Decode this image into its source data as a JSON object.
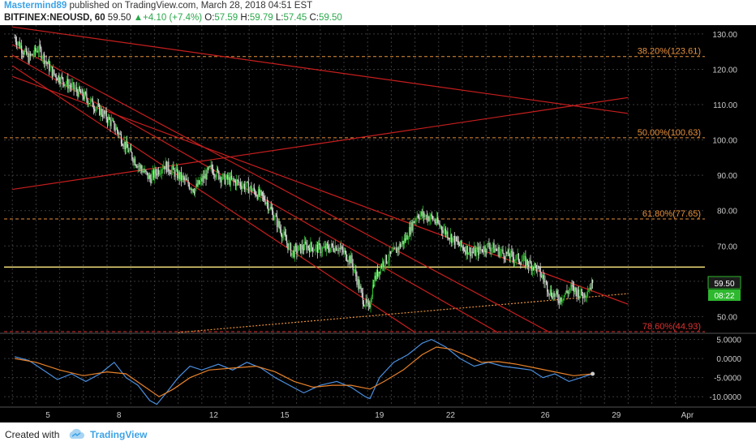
{
  "header": {
    "author": "Mastermind89",
    "published": " published on TradingView.com, March 28, 2018 04:51 EST",
    "symbol": "BITFINEX:NEOUSD, 60",
    "last": " 59.50 ",
    "change": "+4.10 (+7.4%)",
    "o_label": " O:",
    "o_value": "57.59",
    "h_label": " H:",
    "h_value": "59.79",
    "l_label": " L:",
    "l_value": "57.45",
    "c_label": " C:",
    "c_value": "59.50"
  },
  "footer": {
    "created_with": "Created with",
    "brand": "TradingView"
  },
  "colors": {
    "background": "#000000",
    "grid": "#3a3a3a",
    "up": "#2eb82e",
    "down": "#e0e0e0",
    "trendline": "#c81e1e",
    "fib": "#e8913a",
    "fib_786": "#e03030",
    "horizontal": "#f5e27a",
    "support_dotted": "#e8913a",
    "osc_fast": "#4a8fe0",
    "osc_slow": "#e8822a",
    "axis_text": "#c8c8c8"
  },
  "chart_data": [
    {
      "type": "candlestick",
      "symbol": "BITFINEX:NEOUSD",
      "interval": "60",
      "x_tick_labels": [
        "5",
        "8",
        "12",
        "15",
        "19",
        "22",
        "26",
        "29",
        "Apr"
      ],
      "y_tick_labels": [
        "130.00",
        "120.00",
        "110.00",
        "100.00",
        "90.00",
        "80.00",
        "70.00",
        "60.00",
        "50.00"
      ],
      "ylim": [
        45.5,
        132.5
      ],
      "grid": true,
      "price_path": [
        [
          3.6,
          129
        ],
        [
          4.2,
          123
        ],
        [
          4.6,
          126
        ],
        [
          5.2,
          119
        ],
        [
          5.8,
          116
        ],
        [
          6.6,
          112
        ],
        [
          7.4,
          107
        ],
        [
          7.9,
          103
        ],
        [
          8.3,
          98
        ],
        [
          8.8,
          93
        ],
        [
          9.3,
          89
        ],
        [
          9.9,
          93
        ],
        [
          10.5,
          90
        ],
        [
          11.2,
          86
        ],
        [
          11.9,
          92
        ],
        [
          12.4,
          89
        ],
        [
          13.0,
          88
        ],
        [
          13.6,
          86
        ],
        [
          14.2,
          83
        ],
        [
          14.8,
          75
        ],
        [
          15.3,
          68
        ],
        [
          15.9,
          70
        ],
        [
          16.6,
          69
        ],
        [
          17.2,
          70
        ],
        [
          17.8,
          66
        ],
        [
          18.3,
          55
        ],
        [
          18.55,
          52
        ],
        [
          18.75,
          60
        ],
        [
          19.1,
          65
        ],
        [
          19.6,
          68
        ],
        [
          20.1,
          72
        ],
        [
          20.6,
          79
        ],
        [
          21.2,
          78
        ],
        [
          21.8,
          74
        ],
        [
          22.4,
          70
        ],
        [
          23.0,
          68
        ],
        [
          23.6,
          70
        ],
        [
          24.2,
          68
        ],
        [
          25.0,
          66
        ],
        [
          25.6,
          64
        ],
        [
          25.9,
          61
        ],
        [
          26.2,
          57
        ],
        [
          26.6,
          55
        ],
        [
          27.1,
          58
        ],
        [
          27.6,
          56
        ],
        [
          28.0,
          59.5
        ]
      ],
      "last_price": 59.5,
      "price_label": "59.50",
      "countdown_label": "08:22",
      "fib_levels": [
        {
          "label": "38.20%(123.61)",
          "price": 123.61
        },
        {
          "label": "50.00%(100.63)",
          "price": 100.63
        },
        {
          "label": "61.80%(77.65)",
          "price": 77.65
        },
        {
          "label": "78.60%(44.93)",
          "price": 44.93
        }
      ],
      "horizontal_line": 64.0,
      "trendlines": [
        {
          "from": [
            3.5,
            132
          ],
          "to": [
            29.5,
            107.5
          ]
        },
        {
          "from": [
            3.5,
            127
          ],
          "to": [
            26.2,
            45.5
          ]
        },
        {
          "from": [
            3.5,
            124
          ],
          "to": [
            24.0,
            45.5
          ]
        },
        {
          "from": [
            3.5,
            121
          ],
          "to": [
            20.5,
            45.5
          ]
        },
        {
          "from": [
            3.5,
            118
          ],
          "to": [
            29.5,
            53.5
          ]
        },
        {
          "from": [
            3.5,
            86
          ],
          "to": [
            29.5,
            112
          ]
        }
      ],
      "dotted_support": {
        "from": [
          10.5,
          45.5
        ],
        "to": [
          29.5,
          56.5
        ]
      }
    },
    {
      "type": "line",
      "name": "oscillator",
      "y_tick_labels": [
        "5.0000",
        "0.0000",
        "-5.0000",
        "-10.0000"
      ],
      "ylim": [
        -12.5,
        6.4
      ],
      "grid": true,
      "series": [
        {
          "color_key": "osc_fast",
          "points": [
            [
              3.6,
              0.5
            ],
            [
              4.2,
              -0.5
            ],
            [
              4.8,
              -3
            ],
            [
              5.4,
              -5.5
            ],
            [
              6.0,
              -4
            ],
            [
              6.6,
              -6
            ],
            [
              7.2,
              -4
            ],
            [
              7.8,
              -1
            ],
            [
              8.3,
              -5
            ],
            [
              8.8,
              -7
            ],
            [
              9.3,
              -11
            ],
            [
              9.6,
              -12
            ],
            [
              10.0,
              -9
            ],
            [
              10.5,
              -5
            ],
            [
              11.0,
              -2
            ],
            [
              11.5,
              -3
            ],
            [
              12.2,
              -1.5
            ],
            [
              12.8,
              -3
            ],
            [
              13.4,
              -1
            ],
            [
              14.0,
              -2.5
            ],
            [
              14.6,
              -5
            ],
            [
              15.2,
              -7
            ],
            [
              15.8,
              -9
            ],
            [
              16.5,
              -7
            ],
            [
              17.2,
              -6
            ],
            [
              17.8,
              -7.5
            ],
            [
              18.4,
              -10
            ],
            [
              18.6,
              -10.5
            ],
            [
              19.0,
              -5
            ],
            [
              19.6,
              -1
            ],
            [
              20.2,
              1
            ],
            [
              20.8,
              4
            ],
            [
              21.2,
              5
            ],
            [
              21.8,
              3
            ],
            [
              22.4,
              0
            ],
            [
              23.0,
              -2
            ],
            [
              23.6,
              -1
            ],
            [
              24.2,
              -2
            ],
            [
              24.8,
              -2.5
            ],
            [
              25.4,
              -3
            ],
            [
              25.9,
              -5
            ],
            [
              26.4,
              -4
            ],
            [
              27.0,
              -6
            ],
            [
              27.5,
              -5
            ],
            [
              28.0,
              -4
            ]
          ]
        },
        {
          "color_key": "osc_slow",
          "points": [
            [
              3.6,
              0
            ],
            [
              4.5,
              -1
            ],
            [
              5.5,
              -3
            ],
            [
              6.5,
              -4.5
            ],
            [
              7.5,
              -3.5
            ],
            [
              8.3,
              -4
            ],
            [
              9.0,
              -7
            ],
            [
              9.7,
              -10
            ],
            [
              10.3,
              -8
            ],
            [
              11.0,
              -5
            ],
            [
              11.8,
              -3
            ],
            [
              12.8,
              -2.5
            ],
            [
              13.8,
              -2
            ],
            [
              14.6,
              -3.5
            ],
            [
              15.4,
              -6
            ],
            [
              16.2,
              -7.5
            ],
            [
              17.0,
              -7
            ],
            [
              17.8,
              -7
            ],
            [
              18.6,
              -8
            ],
            [
              19.2,
              -6
            ],
            [
              20.0,
              -3
            ],
            [
              20.8,
              1
            ],
            [
              21.4,
              3
            ],
            [
              22.0,
              2.5
            ],
            [
              22.6,
              1
            ],
            [
              23.3,
              -1
            ],
            [
              24.0,
              -0.8
            ],
            [
              24.8,
              -1.5
            ],
            [
              25.6,
              -2.5
            ],
            [
              26.4,
              -3.5
            ],
            [
              27.2,
              -4.5
            ],
            [
              28.0,
              -4
            ]
          ]
        }
      ]
    }
  ]
}
